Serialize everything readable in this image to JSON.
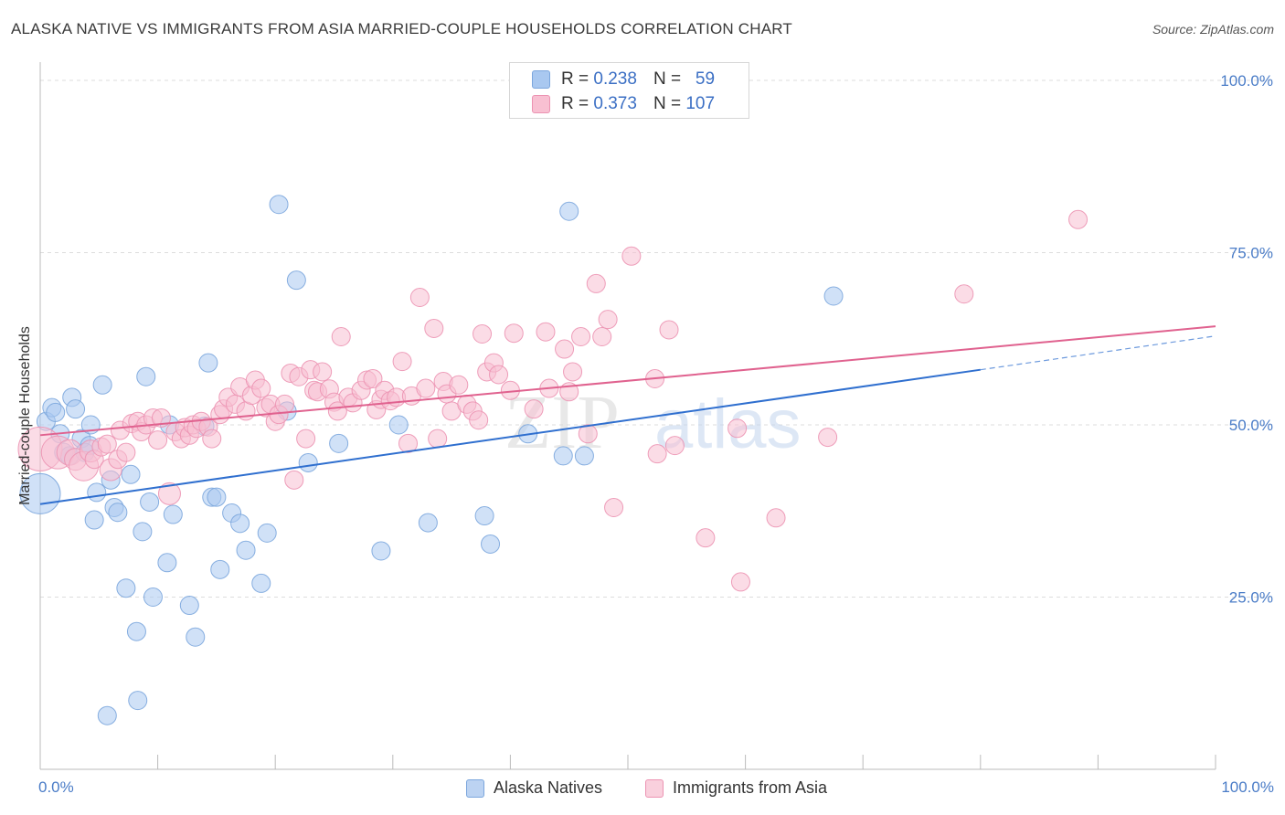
{
  "title": "ALASKA NATIVE VS IMMIGRANTS FROM ASIA MARRIED-COUPLE HOUSEHOLDS CORRELATION CHART",
  "source": "Source: ZipAtlas.com",
  "watermark": {
    "zip": "ZIP",
    "atlas": "atlas"
  },
  "legend_top": [
    {
      "r_label": "R =",
      "r_value": "0.238",
      "n_label": "N =",
      "n_value": "59",
      "color": "#a9c8f0",
      "border": "#7ba6dd"
    },
    {
      "r_label": "R =",
      "r_value": "0.373",
      "n_label": "N =",
      "n_value": "107",
      "color": "#f8c0d2",
      "border": "#ec93b2"
    }
  ],
  "legend_bottom": [
    {
      "label": "Alaska Natives",
      "color": "#bcd3f2",
      "border": "#7ba6dd"
    },
    {
      "label": "Immigrants from Asia",
      "color": "#f9d0dd",
      "border": "#ec93b2"
    }
  ],
  "chart_data": {
    "type": "scatter",
    "xlabel": "",
    "ylabel": "Married-couple Households",
    "xlim": [
      0,
      100
    ],
    "ylim": [
      0,
      100
    ],
    "x_tick_labels": [
      "0.0%",
      "100.0%"
    ],
    "y_tick_labels": [
      "25.0%",
      "50.0%",
      "75.0%",
      "100.0%"
    ],
    "y_ticks": [
      25,
      50,
      75,
      100
    ],
    "grid": "horizontal-dashed",
    "legend_placement": "top-center",
    "series": [
      {
        "name": "Alaska Natives",
        "color": "#7ba6dd",
        "fill": "#a9c8f0",
        "trend": {
          "x0": 0,
          "y0": 38.5,
          "x1": 80,
          "y1": 58,
          "dash_to": 100,
          "dash_y": 62.9,
          "color": "#2f6fcf"
        },
        "points": [
          [
            0.0,
            40.0,
            22
          ],
          [
            0.5,
            50.5,
            10
          ],
          [
            1.0,
            52.5,
            10
          ],
          [
            1.3,
            51.8,
            10
          ],
          [
            1.7,
            48.7,
            10
          ],
          [
            2.0,
            46.0,
            10
          ],
          [
            2.5,
            45.5,
            10
          ],
          [
            2.7,
            54.0,
            10
          ],
          [
            3.0,
            52.3,
            10
          ],
          [
            3.5,
            48.0,
            10
          ],
          [
            3.8,
            46.0,
            10
          ],
          [
            4.2,
            47.0,
            10
          ],
          [
            4.3,
            50.0,
            10
          ],
          [
            4.6,
            36.2,
            10
          ],
          [
            4.8,
            40.2,
            10
          ],
          [
            5.3,
            55.8,
            10
          ],
          [
            5.7,
            7.8,
            10
          ],
          [
            6.0,
            42.0,
            10
          ],
          [
            6.3,
            38.0,
            10
          ],
          [
            6.6,
            37.3,
            10
          ],
          [
            7.3,
            26.3,
            10
          ],
          [
            7.7,
            42.8,
            10
          ],
          [
            8.3,
            10.0,
            10
          ],
          [
            8.2,
            20.0,
            10
          ],
          [
            8.7,
            34.5,
            10
          ],
          [
            9.0,
            57.0,
            10
          ],
          [
            9.3,
            38.8,
            10
          ],
          [
            9.6,
            25.0,
            10
          ],
          [
            10.8,
            30.0,
            10
          ],
          [
            11.0,
            50.0,
            10
          ],
          [
            11.3,
            37.0,
            10
          ],
          [
            12.7,
            23.8,
            10
          ],
          [
            13.2,
            19.2,
            10
          ],
          [
            14.0,
            49.8,
            10
          ],
          [
            14.3,
            59.0,
            10
          ],
          [
            14.6,
            39.5,
            10
          ],
          [
            15.0,
            39.5,
            10
          ],
          [
            15.3,
            29.0,
            10
          ],
          [
            16.3,
            37.2,
            10
          ],
          [
            17.0,
            35.7,
            10
          ],
          [
            17.5,
            31.8,
            10
          ],
          [
            18.8,
            27.0,
            10
          ],
          [
            19.3,
            34.3,
            10
          ],
          [
            20.3,
            82.0,
            10
          ],
          [
            21.0,
            52.0,
            10
          ],
          [
            21.8,
            71.0,
            10
          ],
          [
            22.8,
            44.5,
            10
          ],
          [
            25.4,
            47.3,
            10
          ],
          [
            29.0,
            31.7,
            10
          ],
          [
            30.5,
            50.0,
            10
          ],
          [
            33.0,
            35.8,
            10
          ],
          [
            37.8,
            36.8,
            10
          ],
          [
            38.3,
            32.7,
            10
          ],
          [
            41.5,
            48.7,
            10
          ],
          [
            44.5,
            45.5,
            10
          ],
          [
            45.0,
            81.0,
            10
          ],
          [
            46.3,
            45.5,
            10
          ],
          [
            67.5,
            68.7,
            10
          ],
          [
            55.0,
            55.0,
            0
          ]
        ]
      },
      {
        "name": "Immigrants from Asia",
        "color": "#ec93b2",
        "fill": "#f8c0d2",
        "trend": {
          "x0": 0,
          "y0": 48.5,
          "x1": 100,
          "y1": 64.3,
          "color": "#e0628f"
        },
        "points": [
          [
            0.0,
            46.5,
            24
          ],
          [
            1.5,
            46.0,
            18
          ],
          [
            2.5,
            46.0,
            14
          ],
          [
            3.0,
            45.0,
            12
          ],
          [
            3.7,
            44.0,
            16
          ],
          [
            4.3,
            46.2,
            12
          ],
          [
            4.6,
            45.0,
            10
          ],
          [
            5.2,
            46.8,
            10
          ],
          [
            5.7,
            47.2,
            10
          ],
          [
            6.0,
            43.5,
            12
          ],
          [
            6.6,
            45.0,
            10
          ],
          [
            6.8,
            49.2,
            10
          ],
          [
            7.3,
            46.0,
            10
          ],
          [
            7.8,
            50.2,
            10
          ],
          [
            8.3,
            50.5,
            10
          ],
          [
            8.6,
            49.0,
            10
          ],
          [
            9.0,
            50.0,
            10
          ],
          [
            9.6,
            51.0,
            10
          ],
          [
            10.0,
            47.8,
            10
          ],
          [
            10.3,
            51.0,
            10
          ],
          [
            11.0,
            40.0,
            12
          ],
          [
            11.5,
            49.0,
            10
          ],
          [
            12.0,
            48.0,
            10
          ],
          [
            12.3,
            49.6,
            10
          ],
          [
            12.7,
            48.5,
            10
          ],
          [
            13.0,
            50.0,
            10
          ],
          [
            13.3,
            49.5,
            10
          ],
          [
            13.7,
            50.5,
            10
          ],
          [
            14.3,
            49.7,
            10
          ],
          [
            14.6,
            48.0,
            10
          ],
          [
            15.3,
            51.5,
            10
          ],
          [
            15.6,
            52.3,
            10
          ],
          [
            16.0,
            54.0,
            10
          ],
          [
            16.6,
            53.0,
            10
          ],
          [
            17.0,
            55.5,
            10
          ],
          [
            17.5,
            52.0,
            10
          ],
          [
            18.0,
            54.3,
            10
          ],
          [
            18.3,
            56.5,
            10
          ],
          [
            18.8,
            55.3,
            10
          ],
          [
            19.2,
            52.5,
            10
          ],
          [
            19.6,
            53.0,
            10
          ],
          [
            20.0,
            50.5,
            10
          ],
          [
            20.3,
            51.5,
            10
          ],
          [
            20.8,
            53.0,
            10
          ],
          [
            21.3,
            57.5,
            10
          ],
          [
            21.6,
            42.0,
            10
          ],
          [
            22.0,
            57.0,
            10
          ],
          [
            22.6,
            48.0,
            10
          ],
          [
            23.0,
            58.0,
            10
          ],
          [
            23.3,
            55.0,
            10
          ],
          [
            23.6,
            54.8,
            10
          ],
          [
            24.0,
            57.7,
            10
          ],
          [
            24.6,
            55.2,
            10
          ],
          [
            25.0,
            53.3,
            10
          ],
          [
            25.3,
            52.0,
            10
          ],
          [
            25.6,
            62.8,
            10
          ],
          [
            26.2,
            54.0,
            10
          ],
          [
            26.6,
            53.2,
            10
          ],
          [
            27.3,
            55.0,
            10
          ],
          [
            27.8,
            56.5,
            10
          ],
          [
            28.3,
            56.7,
            10
          ],
          [
            28.6,
            52.2,
            10
          ],
          [
            29.0,
            53.7,
            10
          ],
          [
            29.3,
            55.0,
            10
          ],
          [
            29.8,
            53.5,
            10
          ],
          [
            30.3,
            54.0,
            10
          ],
          [
            30.8,
            59.2,
            10
          ],
          [
            31.3,
            47.3,
            10
          ],
          [
            31.6,
            54.2,
            10
          ],
          [
            32.3,
            68.5,
            10
          ],
          [
            32.8,
            55.3,
            10
          ],
          [
            33.5,
            64.0,
            10
          ],
          [
            33.8,
            48.0,
            10
          ],
          [
            34.3,
            56.3,
            10
          ],
          [
            34.6,
            54.5,
            10
          ],
          [
            35.0,
            52.0,
            10
          ],
          [
            35.6,
            55.8,
            10
          ],
          [
            36.3,
            53.0,
            10
          ],
          [
            36.8,
            52.0,
            10
          ],
          [
            37.3,
            50.7,
            10
          ],
          [
            37.6,
            63.2,
            10
          ],
          [
            38.0,
            57.7,
            10
          ],
          [
            38.6,
            59.0,
            10
          ],
          [
            39.0,
            57.3,
            10
          ],
          [
            40.0,
            55.0,
            10
          ],
          [
            40.3,
            63.3,
            10
          ],
          [
            42.0,
            52.3,
            10
          ],
          [
            43.0,
            63.5,
            10
          ],
          [
            43.3,
            55.3,
            10
          ],
          [
            44.6,
            61.0,
            10
          ],
          [
            45.0,
            54.8,
            10
          ],
          [
            45.3,
            57.7,
            10
          ],
          [
            46.0,
            62.8,
            10
          ],
          [
            46.6,
            48.7,
            10
          ],
          [
            47.3,
            70.5,
            10
          ],
          [
            47.8,
            62.8,
            10
          ],
          [
            48.3,
            65.3,
            10
          ],
          [
            48.8,
            38.0,
            10
          ],
          [
            50.3,
            74.5,
            10
          ],
          [
            52.3,
            56.7,
            10
          ],
          [
            52.5,
            45.8,
            10
          ],
          [
            53.5,
            63.8,
            10
          ],
          [
            54.0,
            47.0,
            10
          ],
          [
            56.6,
            33.6,
            10
          ],
          [
            59.3,
            49.5,
            10
          ],
          [
            59.6,
            27.2,
            10
          ],
          [
            62.6,
            36.5,
            10
          ],
          [
            67.0,
            48.2,
            10
          ],
          [
            78.6,
            69.0,
            10
          ],
          [
            88.3,
            79.8,
            10
          ]
        ]
      }
    ]
  }
}
